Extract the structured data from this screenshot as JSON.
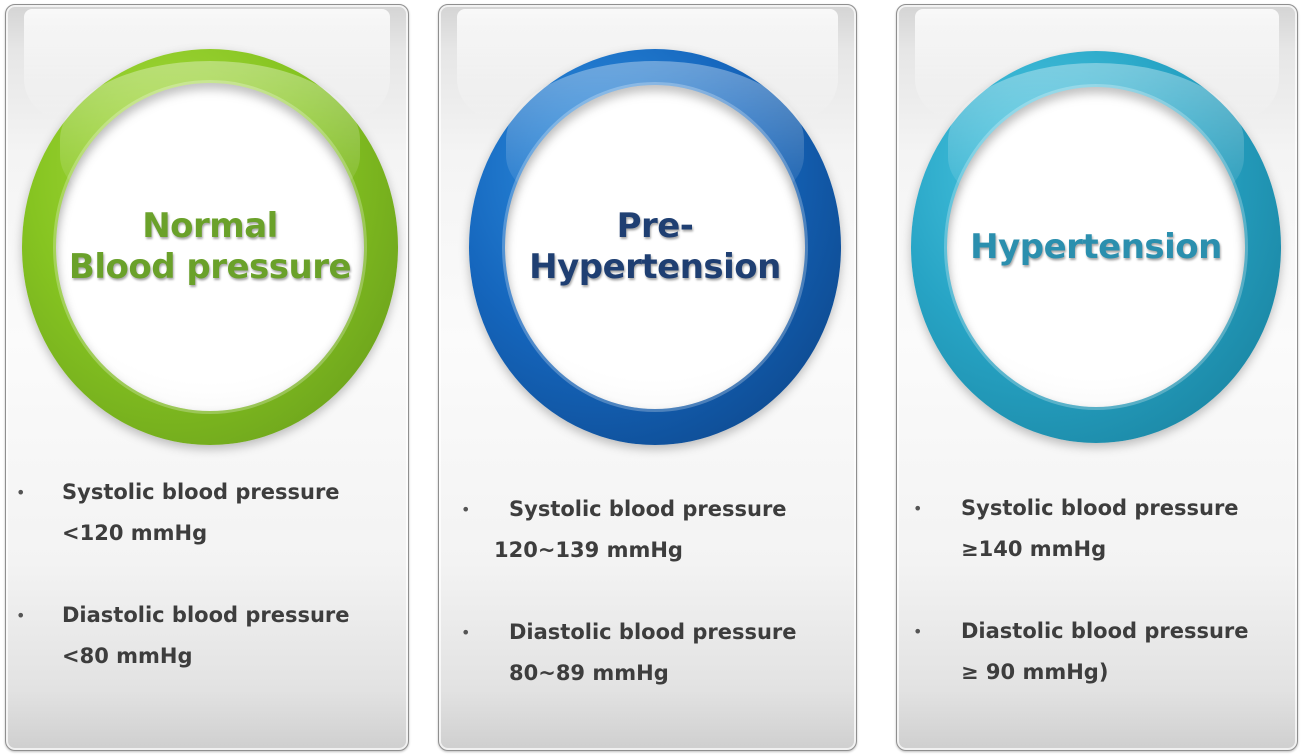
{
  "cards": [
    {
      "title_lines": [
        "Normal",
        "Blood pressure"
      ],
      "bullets": [
        "Systolic blood pressure <120 mmHg",
        "Diastolic blood pressure <80 mmHg"
      ],
      "ring_color": "#86c421",
      "title_color": "#6aa12a"
    },
    {
      "title_lines": [
        "Pre-",
        "Hypertension"
      ],
      "bullets": [
        "Systolic blood pressure 120~139 mmHg",
        "Diastolic blood pressure 80~89 mmHg"
      ],
      "ring_color": "#1566bd",
      "title_color": "#1f3f72"
    },
    {
      "title_lines": [
        "Hypertension"
      ],
      "bullets": [
        "Systolic blood pressure ≥140 mmHg",
        "Diastolic blood pressure ≥ 90 mmHg)"
      ],
      "ring_color": "#27a4c5",
      "title_color": "#2b8fae"
    }
  ],
  "bullet_glyph": "•"
}
